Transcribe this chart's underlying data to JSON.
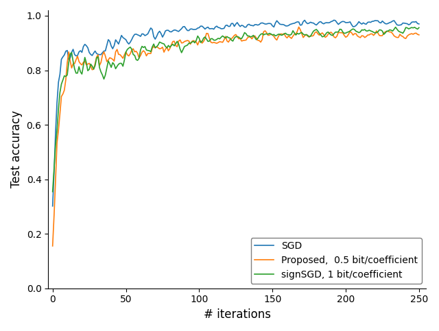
{
  "title": "",
  "xlabel": "# iterations",
  "ylabel": "Test accuracy",
  "xlim": [
    -3,
    255
  ],
  "ylim": [
    0.0,
    1.02
  ],
  "yticks": [
    0.0,
    0.2,
    0.4,
    0.6,
    0.8,
    1.0
  ],
  "xticks": [
    0,
    50,
    100,
    150,
    200,
    250
  ],
  "colors": {
    "SGD": "#1f77b4",
    "Proposed": "#ff7f0e",
    "signSGD": "#2ca02c"
  },
  "legend_labels": [
    "SGD",
    "Proposed,  0.5 bit/coefficient",
    "signSGD, 1 bit/coefficient"
  ],
  "legend_loc": "lower right",
  "figsize": [
    6.4,
    4.83
  ],
  "dpi": 100,
  "n_points": 251
}
